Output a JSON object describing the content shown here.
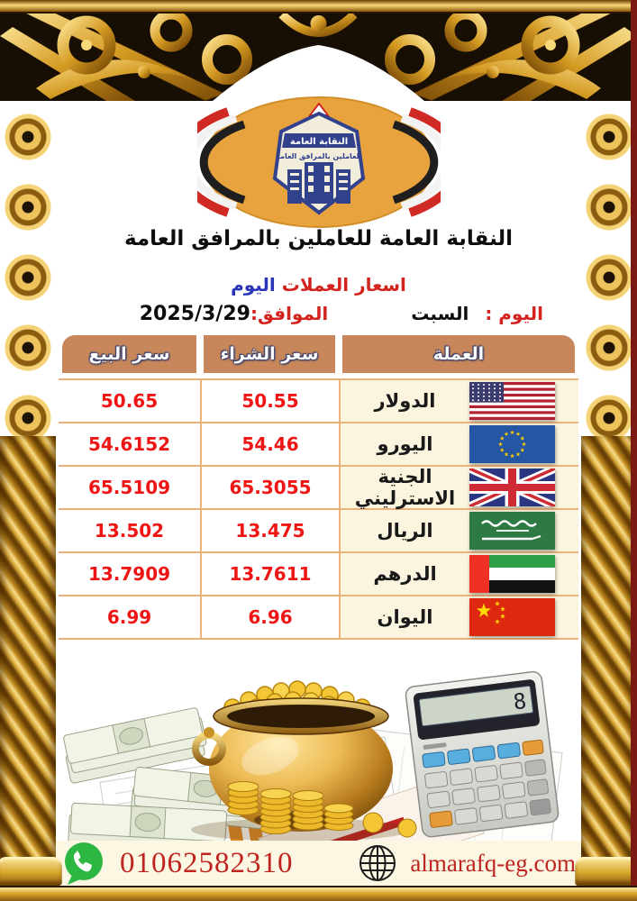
{
  "logo": {
    "emblem_top": "النقابة العامة",
    "emblem_bottom": "للعاملين بالمرافق العامة"
  },
  "header": {
    "org_name": "النقابة العامة للعاملين بالمرافق العامة",
    "subtitle_main": "اسعار العملات",
    "subtitle_accent": "اليوم",
    "day_label": "اليوم :",
    "day_value": "السبت",
    "date_label": "الموافق:",
    "date_value": "2025/3/29"
  },
  "table": {
    "headers": {
      "currency": "العملة",
      "buy": "سعر الشراء",
      "sell": "سعر البيع"
    },
    "rows": [
      {
        "currency": "الدولار",
        "buy": "50.55",
        "sell": "50.65",
        "flag": "usa"
      },
      {
        "currency": "اليورو",
        "buy": "54.46",
        "sell": "54.6152",
        "flag": "eu"
      },
      {
        "currency": "الجنية الاسترليني",
        "buy": "65.3055",
        "sell": "65.5109",
        "flag": "uk"
      },
      {
        "currency": "الريال",
        "buy": "13.475",
        "sell": "13.502",
        "flag": "saudi"
      },
      {
        "currency": "الدرهم",
        "buy": "13.7611",
        "sell": "13.7909",
        "flag": "uae"
      },
      {
        "currency": "اليوان",
        "buy": "6.96",
        "sell": "6.99",
        "flag": "china"
      }
    ]
  },
  "scene": {
    "calculator_display": "8"
  },
  "footer": {
    "phone": "01062582310",
    "website": "almarafq-eg.com"
  },
  "colors": {
    "gold_light": "#f8d979",
    "gold_dark": "#7a4a06",
    "frame_bg": "#170e04",
    "header_bg": "#c8875b",
    "value_red": "#ee1515",
    "label_red": "#d2231f",
    "accent_blue": "#2a35b8",
    "cream": "#fbf5df",
    "footer_cream": "#fcf7e3",
    "whatsapp_green": "#2cb742",
    "maroon_edge": "#7a1a12"
  }
}
